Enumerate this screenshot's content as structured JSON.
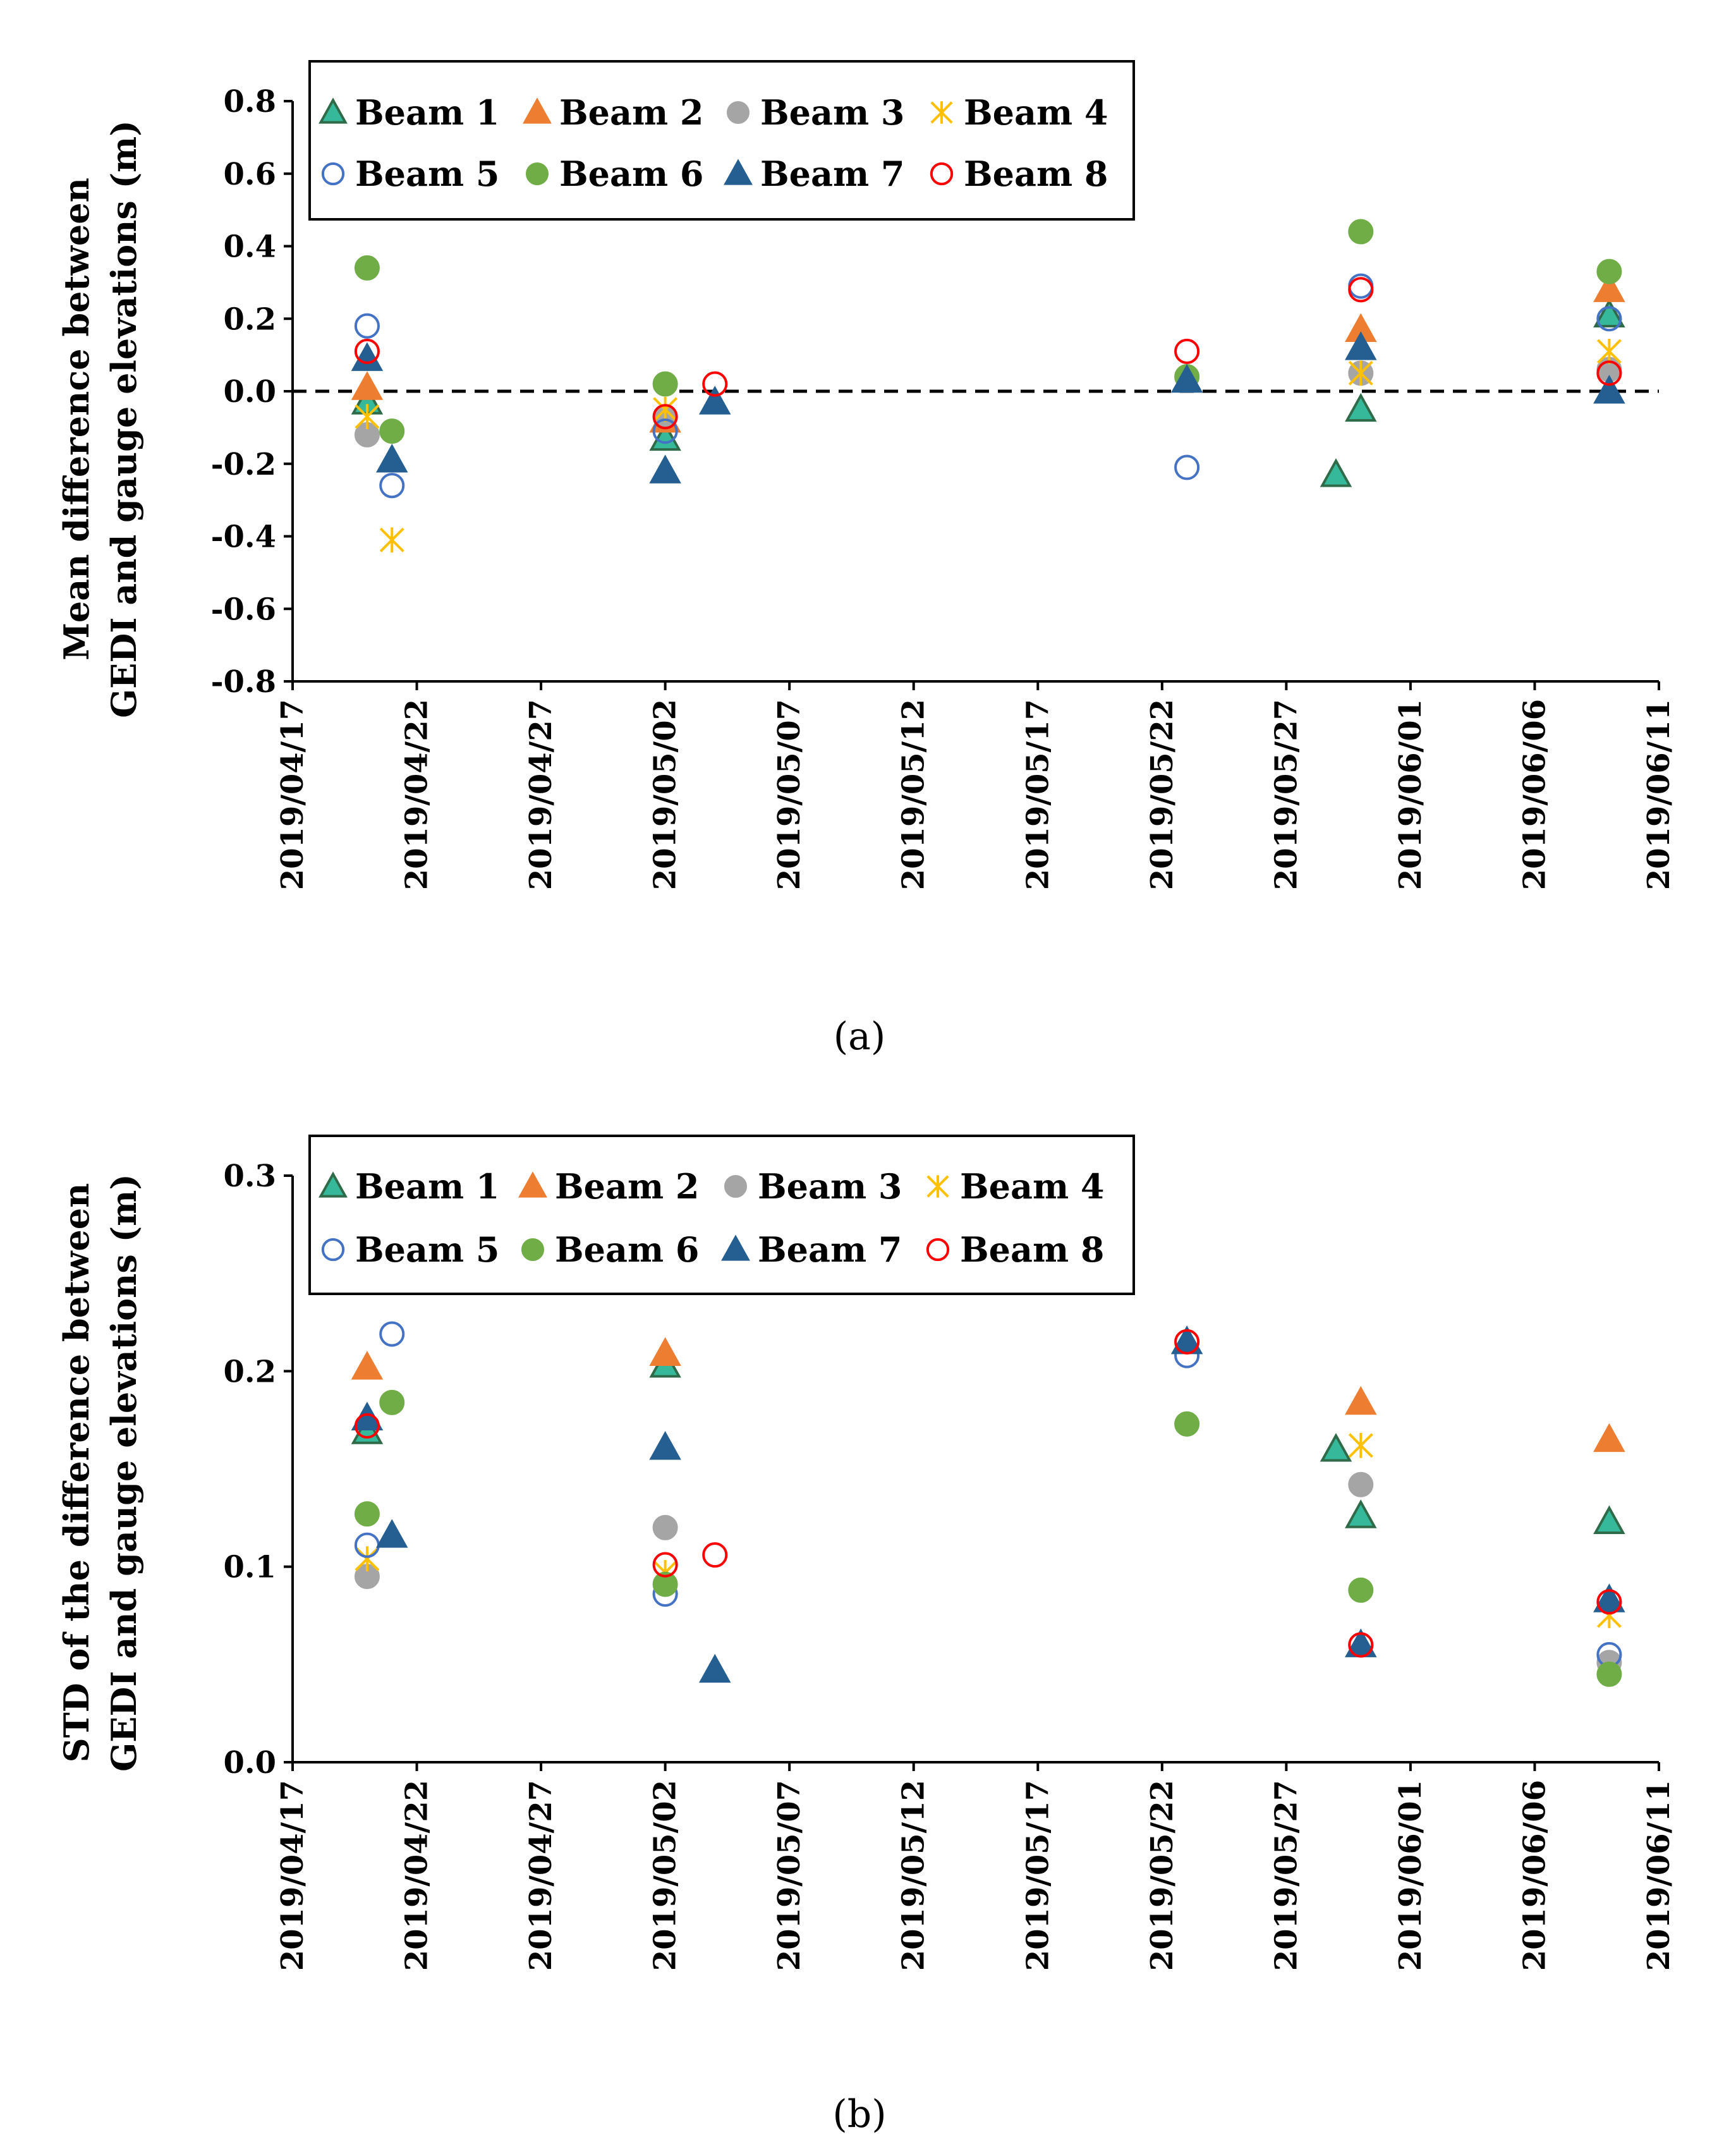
{
  "figure": {
    "label_a": "(a)",
    "label_b": "(b)"
  },
  "legend": [
    {
      "name": "Beam 1",
      "marker": "triangle",
      "fill": "#36b99a",
      "stroke": "#2f6a49"
    },
    {
      "name": "Beam 2",
      "marker": "triangle",
      "fill": "#ed7d31",
      "stroke": "#ed7d31"
    },
    {
      "name": "Beam 3",
      "marker": "circle",
      "fill": "#a5a5a5",
      "stroke": "#a5a5a5"
    },
    {
      "name": "Beam 4",
      "marker": "asterisk",
      "fill": "none",
      "stroke": "#ffc000"
    },
    {
      "name": "Beam 5",
      "marker": "circle-open",
      "fill": "none",
      "stroke": "#4472c4"
    },
    {
      "name": "Beam 6",
      "marker": "circle",
      "fill": "#70ad47",
      "stroke": "#70ad47"
    },
    {
      "name": "Beam 7",
      "marker": "triangle",
      "fill": "#255e91",
      "stroke": "#255e91"
    },
    {
      "name": "Beam 8",
      "marker": "circle-open",
      "fill": "none",
      "stroke": "#ff0000"
    }
  ],
  "chart_data": [
    {
      "type": "scatter",
      "panel": "(a)",
      "ylabel_line1": "Mean difference between",
      "ylabel_line2": "GEDI and gauge elevations (m)",
      "xlabel": "",
      "ylim": [
        -0.8,
        0.8
      ],
      "yticks": [
        -0.8,
        -0.6,
        -0.4,
        -0.2,
        0.0,
        0.2,
        0.4,
        0.6,
        0.8
      ],
      "ytick_labels": [
        "-0.8",
        "-0.6",
        "-0.4",
        "-0.2",
        "0.0",
        "0.2",
        "0.4",
        "0.6",
        "0.8"
      ],
      "xlim_days": [
        0,
        55
      ],
      "xticks": [
        "2019/04/17",
        "2019/04/22",
        "2019/04/27",
        "2019/05/02",
        "2019/05/07",
        "2019/05/12",
        "2019/05/17",
        "2019/05/22",
        "2019/05/27",
        "2019/06/01",
        "2019/06/06",
        "2019/06/11"
      ],
      "reference_line": 0.0,
      "series": [
        {
          "name": "Beam 1",
          "points": [
            [
              "2019/04/20",
              -0.03
            ],
            [
              "2019/05/02",
              -0.13
            ],
            [
              "2019/05/29",
              -0.23
            ],
            [
              "2019/05/30",
              -0.05
            ],
            [
              "2019/06/09",
              0.21
            ]
          ]
        },
        {
          "name": "Beam 2",
          "points": [
            [
              "2019/04/20",
              0.01
            ],
            [
              "2019/05/02",
              -0.08
            ],
            [
              "2019/05/30",
              0.17
            ],
            [
              "2019/06/09",
              0.28
            ]
          ]
        },
        {
          "name": "Beam 3",
          "points": [
            [
              "2019/04/20",
              -0.12
            ],
            [
              "2019/05/02",
              -0.07
            ],
            [
              "2019/05/30",
              0.05
            ],
            [
              "2019/06/09",
              0.06
            ]
          ]
        },
        {
          "name": "Beam 4",
          "points": [
            [
              "2019/04/20",
              -0.07
            ],
            [
              "2019/04/21",
              -0.41
            ],
            [
              "2019/05/02",
              -0.05
            ],
            [
              "2019/05/30",
              0.05
            ],
            [
              "2019/06/09",
              0.11
            ]
          ]
        },
        {
          "name": "Beam 5",
          "points": [
            [
              "2019/04/20",
              0.18
            ],
            [
              "2019/04/21",
              -0.26
            ],
            [
              "2019/05/02",
              -0.11
            ],
            [
              "2019/05/23",
              -0.21
            ],
            [
              "2019/05/30",
              0.29
            ],
            [
              "2019/06/09",
              0.2
            ]
          ]
        },
        {
          "name": "Beam 6",
          "points": [
            [
              "2019/04/20",
              0.34
            ],
            [
              "2019/04/21",
              -0.11
            ],
            [
              "2019/05/02",
              0.02
            ],
            [
              "2019/05/23",
              0.04
            ],
            [
              "2019/05/30",
              0.44
            ],
            [
              "2019/06/09",
              0.33
            ]
          ]
        },
        {
          "name": "Beam 7",
          "points": [
            [
              "2019/04/20",
              0.09
            ],
            [
              "2019/04/21",
              -0.19
            ],
            [
              "2019/05/02",
              -0.22
            ],
            [
              "2019/05/04",
              -0.03
            ],
            [
              "2019/05/23",
              0.03
            ],
            [
              "2019/05/30",
              0.12
            ],
            [
              "2019/06/09",
              0.0
            ]
          ]
        },
        {
          "name": "Beam 8",
          "points": [
            [
              "2019/04/20",
              0.11
            ],
            [
              "2019/05/02",
              -0.07
            ],
            [
              "2019/05/04",
              0.02
            ],
            [
              "2019/05/23",
              0.11
            ],
            [
              "2019/05/30",
              0.28
            ],
            [
              "2019/06/09",
              0.05
            ]
          ]
        }
      ]
    },
    {
      "type": "scatter",
      "panel": "(b)",
      "ylabel_line1": "STD of the difference between",
      "ylabel_line2": "GEDI and gauge elevations (m)",
      "xlabel": "",
      "ylim": [
        0.0,
        0.3
      ],
      "yticks": [
        0.0,
        0.1,
        0.2,
        0.3
      ],
      "ytick_labels": [
        "0.0",
        "0.1",
        "0.2",
        "0.3"
      ],
      "xlim_days": [
        0,
        55
      ],
      "xticks": [
        "2019/04/17",
        "2019/04/22",
        "2019/04/27",
        "2019/05/02",
        "2019/05/07",
        "2019/05/12",
        "2019/05/17",
        "2019/05/22",
        "2019/05/27",
        "2019/06/01",
        "2019/06/06",
        "2019/06/11"
      ],
      "reference_line": null,
      "series": [
        {
          "name": "Beam 1",
          "points": [
            [
              "2019/04/20",
              0.169
            ],
            [
              "2019/05/02",
              0.203
            ],
            [
              "2019/05/29",
              0.16
            ],
            [
              "2019/05/30",
              0.126
            ],
            [
              "2019/06/09",
              0.123
            ]
          ]
        },
        {
          "name": "Beam 2",
          "points": [
            [
              "2019/04/20",
              0.202
            ],
            [
              "2019/05/02",
              0.209
            ],
            [
              "2019/05/30",
              0.184
            ],
            [
              "2019/06/09",
              0.165
            ]
          ]
        },
        {
          "name": "Beam 3",
          "points": [
            [
              "2019/04/20",
              0.095
            ],
            [
              "2019/05/02",
              0.12
            ],
            [
              "2019/05/30",
              0.142
            ],
            [
              "2019/06/09",
              0.051
            ]
          ]
        },
        {
          "name": "Beam 4",
          "points": [
            [
              "2019/04/20",
              0.104
            ],
            [
              "2019/05/02",
              0.097
            ],
            [
              "2019/05/30",
              0.162
            ],
            [
              "2019/06/09",
              0.075
            ]
          ]
        },
        {
          "name": "Beam 5",
          "points": [
            [
              "2019/04/20",
              0.111
            ],
            [
              "2019/04/21",
              0.219
            ],
            [
              "2019/05/02",
              0.086
            ],
            [
              "2019/05/23",
              0.208
            ],
            [
              "2019/05/30",
              0.06
            ],
            [
              "2019/06/09",
              0.055
            ]
          ]
        },
        {
          "name": "Beam 6",
          "points": [
            [
              "2019/04/20",
              0.127
            ],
            [
              "2019/04/21",
              0.184
            ],
            [
              "2019/05/02",
              0.091
            ],
            [
              "2019/05/23",
              0.173
            ],
            [
              "2019/05/30",
              0.088
            ],
            [
              "2019/06/09",
              0.045
            ]
          ]
        },
        {
          "name": "Beam 7",
          "points": [
            [
              "2019/04/20",
              0.176
            ],
            [
              "2019/04/21",
              0.116
            ],
            [
              "2019/05/02",
              0.161
            ],
            [
              "2019/05/04",
              0.047
            ],
            [
              "2019/05/23",
              0.215
            ],
            [
              "2019/05/30",
              0.06
            ],
            [
              "2019/06/09",
              0.083
            ]
          ]
        },
        {
          "name": "Beam 8",
          "points": [
            [
              "2019/04/20",
              0.172
            ],
            [
              "2019/05/02",
              0.101
            ],
            [
              "2019/05/04",
              0.106
            ],
            [
              "2019/05/23",
              0.215
            ],
            [
              "2019/05/30",
              0.06
            ],
            [
              "2019/06/09",
              0.082
            ]
          ]
        }
      ]
    }
  ]
}
